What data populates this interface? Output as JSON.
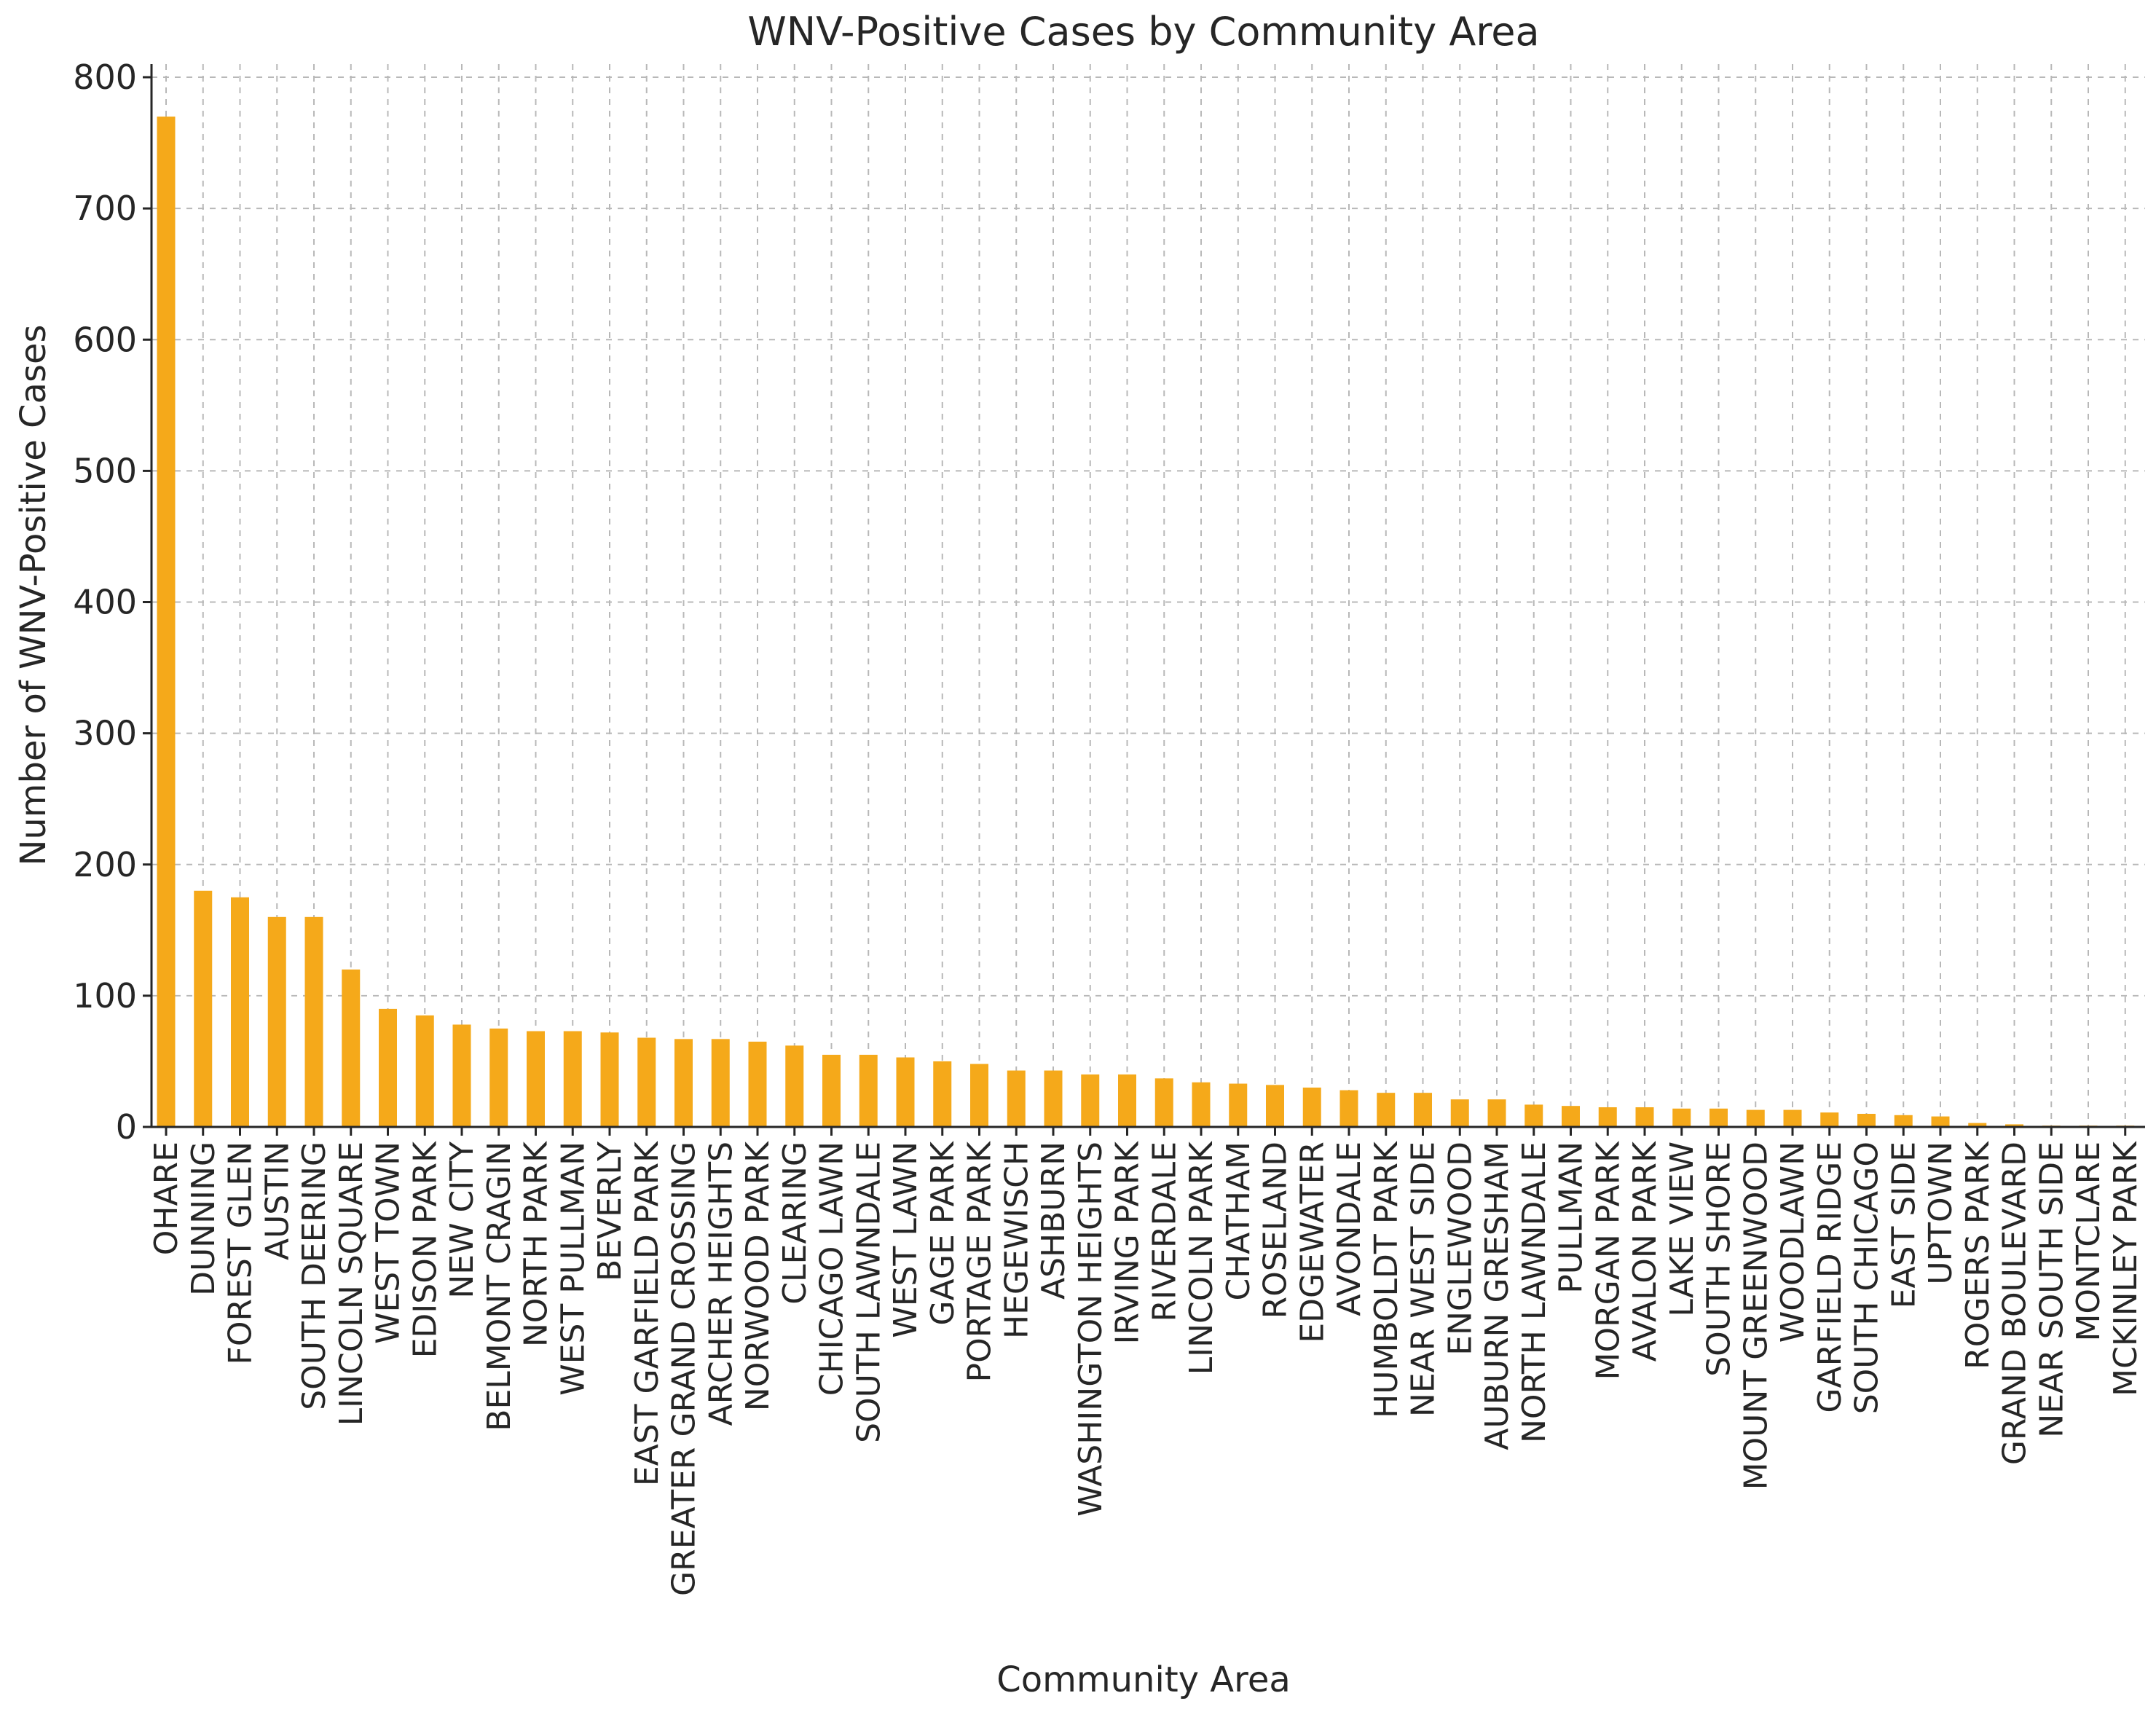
{
  "chart_data": {
    "type": "bar",
    "title": "WNV-Positive Cases by Community Area",
    "xlabel": "Community Area",
    "ylabel": "Number of WNV-Positive Cases",
    "ylim": [
      0,
      810
    ],
    "yticks": [
      0,
      100,
      200,
      300,
      400,
      500,
      600,
      700,
      800
    ],
    "grid": true,
    "bar_color": "#F5A91A",
    "categories": [
      "OHARE",
      "DUNNING",
      "FOREST GLEN",
      "AUSTIN",
      "SOUTH DEERING",
      "LINCOLN SQUARE",
      "WEST TOWN",
      "EDISON PARK",
      "NEW CITY",
      "BELMONT CRAGIN",
      "NORTH PARK",
      "WEST PULLMAN",
      "BEVERLY",
      "EAST GARFIELD PARK",
      "GREATER GRAND CROSSING",
      "ARCHER HEIGHTS",
      "NORWOOD PARK",
      "CLEARING",
      "CHICAGO LAWN",
      "SOUTH LAWNDALE",
      "WEST LAWN",
      "GAGE PARK",
      "PORTAGE PARK",
      "HEGEWISCH",
      "ASHBURN",
      "WASHINGTON HEIGHTS",
      "IRVING PARK",
      "RIVERDALE",
      "LINCOLN PARK",
      "CHATHAM",
      "ROSELAND",
      "EDGEWATER",
      "AVONDALE",
      "HUMBOLDT PARK",
      "NEAR WEST SIDE",
      "ENGLEWOOD",
      "AUBURN GRESHAM",
      "NORTH LAWNDALE",
      "PULLMAN",
      "MORGAN PARK",
      "AVALON PARK",
      "LAKE VIEW",
      "SOUTH SHORE",
      "MOUNT GREENWOOD",
      "WOODLAWN",
      "GARFIELD RIDGE",
      "SOUTH CHICAGO",
      "EAST SIDE",
      "UPTOWN",
      "ROGERS PARK",
      "GRAND BOULEVARD",
      "NEAR SOUTH SIDE",
      "MONTCLARE",
      "MCKINLEY PARK"
    ],
    "values": [
      770,
      180,
      175,
      160,
      160,
      120,
      90,
      85,
      78,
      75,
      73,
      73,
      72,
      68,
      67,
      67,
      65,
      62,
      55,
      55,
      53,
      50,
      48,
      43,
      43,
      40,
      40,
      37,
      34,
      33,
      32,
      30,
      28,
      26,
      26,
      21,
      21,
      17,
      16,
      15,
      15,
      14,
      14,
      13,
      13,
      11,
      10,
      9,
      8,
      3,
      2,
      1,
      1,
      1
    ]
  }
}
